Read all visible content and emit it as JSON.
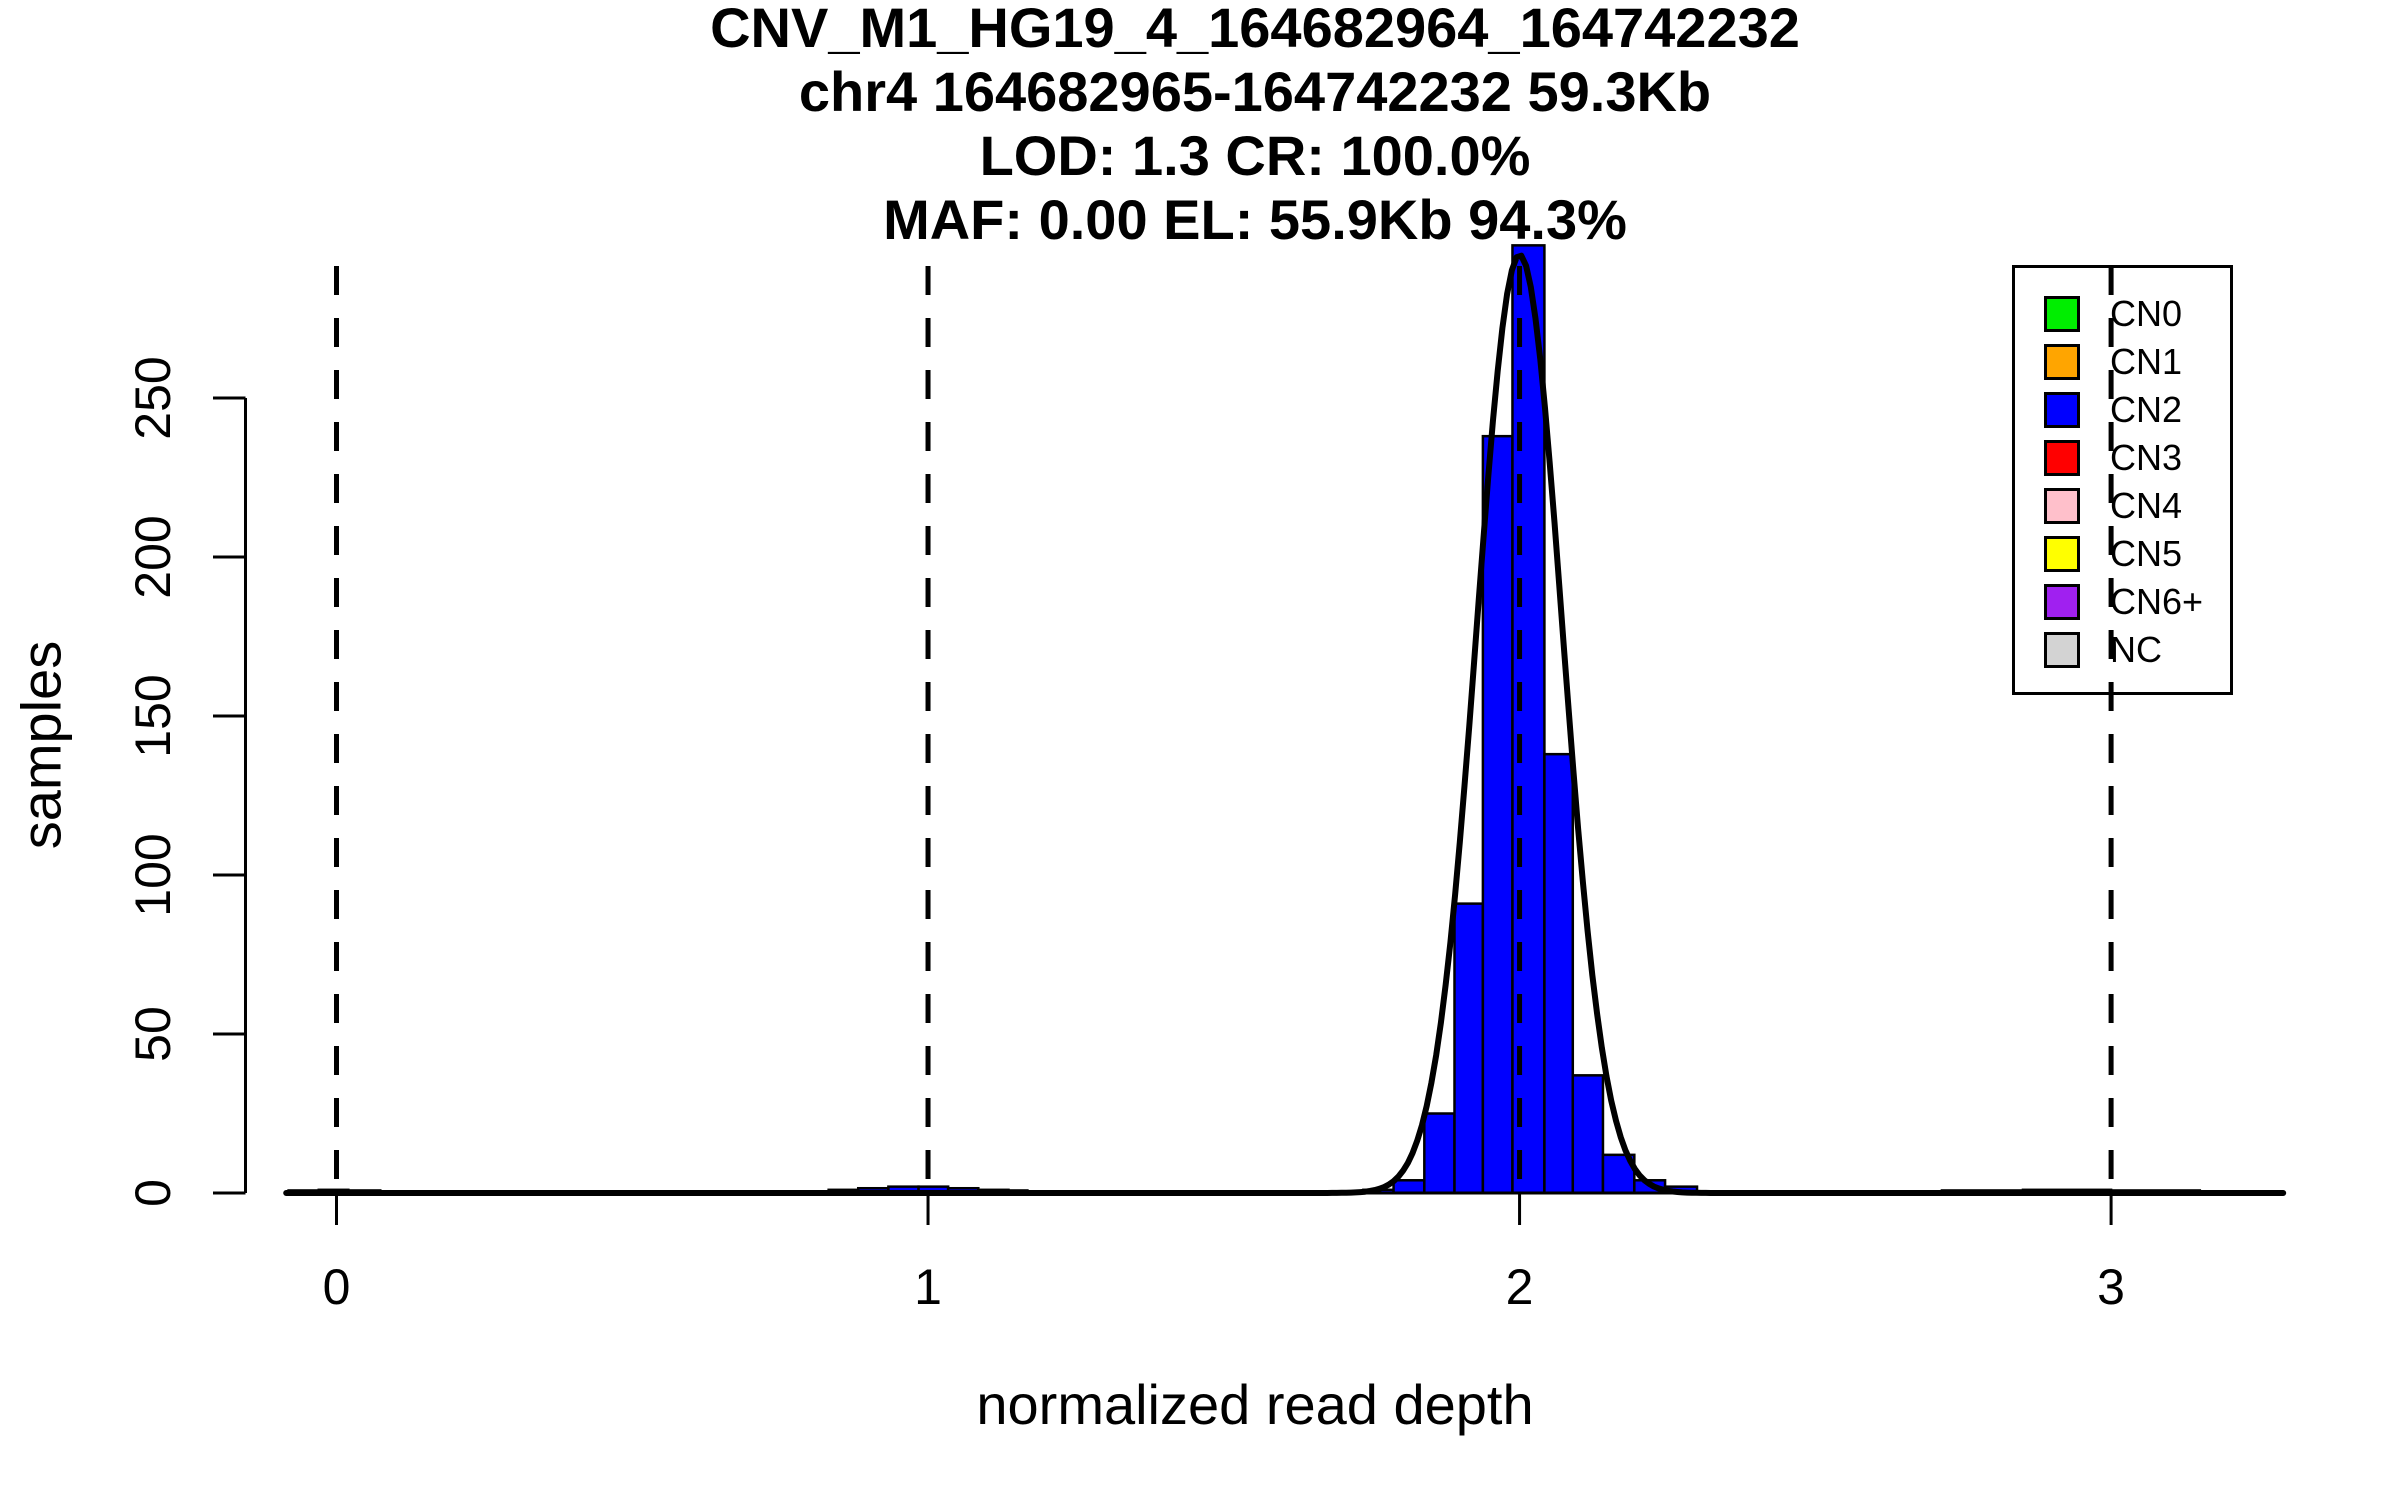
{
  "title": {
    "lines": [
      "CNV_M1_HG19_4_164682964_164742232",
      "chr4 164682965-164742232 59.3Kb",
      "LOD: 1.3 CR: 100.0%",
      "MAF: 0.00 EL: 55.9Kb 94.3%"
    ]
  },
  "stats": {
    "cnv_id": "CNV_M1_HG19_4_164682964_164742232",
    "region": "chr4 164682965-164742232",
    "region_size": "59.3Kb",
    "lod": "1.3",
    "cr": "100.0%",
    "maf": "0.00",
    "el": "55.9Kb",
    "el_pct": "94.3%"
  },
  "axes": {
    "x": {
      "label": "normalized read depth",
      "ticks": [
        "0",
        "1",
        "2",
        "3"
      ]
    },
    "y": {
      "label": "samples",
      "ticks": [
        "0",
        "50",
        "100",
        "150",
        "200",
        "250"
      ]
    }
  },
  "legend": {
    "items": [
      {
        "label": "CN0",
        "color": "#00EE00"
      },
      {
        "label": "CN1",
        "color": "#FFA500"
      },
      {
        "label": "CN2",
        "color": "#0000FF"
      },
      {
        "label": "CN3",
        "color": "#FF0000"
      },
      {
        "label": "CN4",
        "color": "#FFC0CB"
      },
      {
        "label": "CN5",
        "color": "#FFFF00"
      },
      {
        "label": "CN6+",
        "color": "#A020F0"
      },
      {
        "label": "NC",
        "color": "#D3D3D3"
      }
    ]
  },
  "chart_data": {
    "type": "bar",
    "subtype": "histogram-with-gaussian-fit",
    "title": "CNV_M1_HG19_4_164682964_164742232",
    "xlabel": "normalized read depth",
    "ylabel": "samples",
    "xlim": [
      -0.1,
      3.3
    ],
    "ylim": [
      0,
      321
    ],
    "x_ticks": [
      0,
      1,
      2,
      3
    ],
    "y_ticks": [
      0,
      50,
      100,
      150,
      200,
      250
    ],
    "dashed_guides_x": [
      0,
      1,
      2,
      3
    ],
    "grid": false,
    "legend_position": "top-right",
    "bar_fill": "#0000FF",
    "bar_border": "#000000",
    "curve_color": "#000000",
    "bars": [
      {
        "x0": -0.081,
        "x1": -0.03,
        "count": 0.8
      },
      {
        "x0": -0.03,
        "x1": 0.02,
        "count": 1
      },
      {
        "x0": 0.02,
        "x1": 0.074,
        "count": 0.8
      },
      {
        "x0": 0.832,
        "x1": 0.882,
        "count": 1
      },
      {
        "x0": 0.882,
        "x1": 0.933,
        "count": 1.5
      },
      {
        "x0": 0.933,
        "x1": 0.984,
        "count": 2
      },
      {
        "x0": 0.984,
        "x1": 1.034,
        "count": 2
      },
      {
        "x0": 1.034,
        "x1": 1.085,
        "count": 1.5
      },
      {
        "x0": 1.085,
        "x1": 1.136,
        "count": 1
      },
      {
        "x0": 1.136,
        "x1": 1.168,
        "count": 0.8
      },
      {
        "x0": 1.736,
        "x1": 1.787,
        "count": 1
      },
      {
        "x0": 1.787,
        "x1": 1.839,
        "count": 4
      },
      {
        "x0": 1.839,
        "x1": 1.89,
        "count": 25
      },
      {
        "x0": 1.89,
        "x1": 1.938,
        "count": 91
      },
      {
        "x0": 1.938,
        "x1": 1.988,
        "count": 238
      },
      {
        "x0": 1.988,
        "x1": 2.042,
        "count": 298
      },
      {
        "x0": 2.042,
        "x1": 2.09,
        "count": 138
      },
      {
        "x0": 2.09,
        "x1": 2.141,
        "count": 37
      },
      {
        "x0": 2.141,
        "x1": 2.194,
        "count": 12
      },
      {
        "x0": 2.194,
        "x1": 2.246,
        "count": 4
      },
      {
        "x0": 2.246,
        "x1": 2.3,
        "count": 2
      },
      {
        "x0": 2.714,
        "x1": 2.851,
        "count": 0.8
      },
      {
        "x0": 2.851,
        "x1": 3.0,
        "count": 1
      },
      {
        "x0": 3.0,
        "x1": 3.15,
        "count": 0.8
      }
    ],
    "fit_curve": {
      "shape": "gaussian",
      "mean": 2.0,
      "sd": 0.072,
      "amplitude": 295
    }
  }
}
